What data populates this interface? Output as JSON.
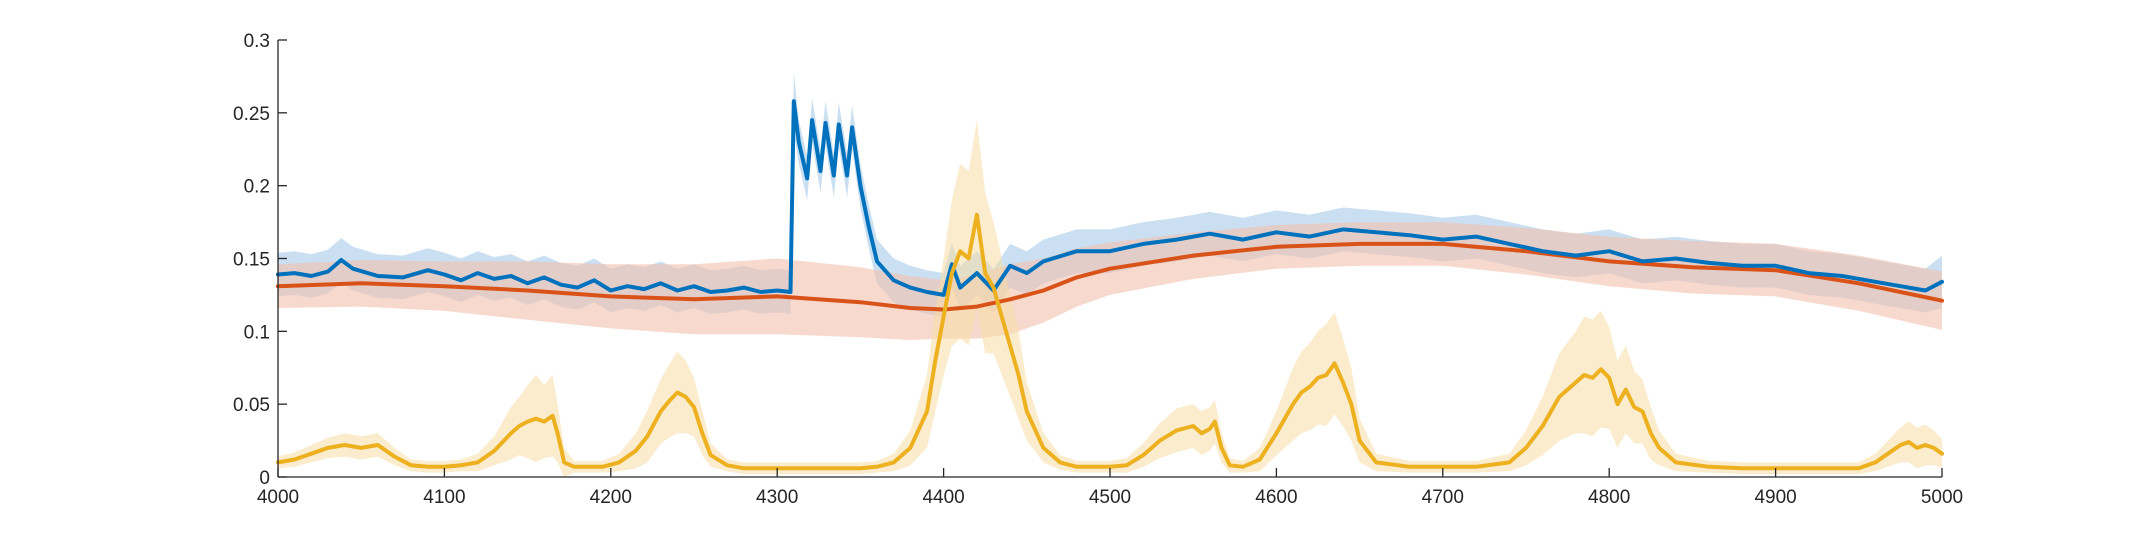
{
  "chart_data": {
    "type": "line",
    "title": "",
    "xlabel": "",
    "ylabel": "",
    "xlim": [
      4000,
      5000
    ],
    "ylim": [
      0,
      0.3
    ],
    "x_ticks": [
      4000,
      4100,
      4200,
      4300,
      4400,
      4500,
      4600,
      4700,
      4800,
      4900,
      5000
    ],
    "x_tick_labels": [
      "4000",
      "4100",
      "4200",
      "4300",
      "4400",
      "4500",
      "4600",
      "4700",
      "4800",
      "4900",
      "5000"
    ],
    "y_ticks": [
      0,
      0.05,
      0.1,
      0.15,
      0.2,
      0.25,
      0.3
    ],
    "y_tick_labels": [
      "0",
      "0.05",
      "0.1",
      "0.15",
      "0.2",
      "0.25",
      "0.3"
    ],
    "grid": false,
    "legend": "none",
    "series": [
      {
        "color": "#0072BD",
        "band_color": "#A6CCEA",
        "x": [
          4000,
          4010,
          4020,
          4030,
          4038,
          4045,
          4060,
          4075,
          4090,
          4100,
          4110,
          4120,
          4130,
          4140,
          4150,
          4160,
          4170,
          4180,
          4190,
          4200,
          4210,
          4220,
          4230,
          4240,
          4250,
          4260,
          4270,
          4280,
          4290,
          4300,
          4308,
          4310,
          4313,
          4318,
          4321,
          4326,
          4329,
          4334,
          4337,
          4342,
          4345,
          4350,
          4355,
          4360,
          4370,
          4380,
          4390,
          4400,
          4405,
          4410,
          4420,
          4430,
          4440,
          4450,
          4460,
          4480,
          4500,
          4520,
          4540,
          4560,
          4580,
          4600,
          4620,
          4640,
          4660,
          4680,
          4700,
          4720,
          4740,
          4760,
          4780,
          4800,
          4820,
          4840,
          4860,
          4880,
          4900,
          4920,
          4940,
          4960,
          4980,
          4990,
          5000
        ],
        "y": [
          0.139,
          0.14,
          0.138,
          0.141,
          0.149,
          0.143,
          0.138,
          0.137,
          0.142,
          0.139,
          0.135,
          0.14,
          0.136,
          0.138,
          0.133,
          0.137,
          0.132,
          0.13,
          0.135,
          0.128,
          0.131,
          0.129,
          0.133,
          0.128,
          0.131,
          0.127,
          0.128,
          0.13,
          0.127,
          0.128,
          0.127,
          0.258,
          0.23,
          0.205,
          0.245,
          0.21,
          0.243,
          0.207,
          0.242,
          0.207,
          0.24,
          0.2,
          0.172,
          0.148,
          0.135,
          0.13,
          0.127,
          0.125,
          0.146,
          0.13,
          0.14,
          0.128,
          0.145,
          0.14,
          0.148,
          0.155,
          0.155,
          0.16,
          0.163,
          0.167,
          0.163,
          0.168,
          0.165,
          0.17,
          0.168,
          0.166,
          0.163,
          0.165,
          0.16,
          0.155,
          0.152,
          0.155,
          0.148,
          0.15,
          0.147,
          0.145,
          0.145,
          0.14,
          0.138,
          0.134,
          0.13,
          0.128,
          0.134
        ],
        "band": [
          0.015,
          0.015,
          0.015,
          0.015,
          0.015,
          0.015,
          0.015,
          0.015,
          0.015,
          0.015,
          0.015,
          0.015,
          0.015,
          0.015,
          0.015,
          0.015,
          0.015,
          0.015,
          0.015,
          0.015,
          0.015,
          0.015,
          0.015,
          0.015,
          0.015,
          0.015,
          0.015,
          0.015,
          0.015,
          0.015,
          0.015,
          0.02,
          0.015,
          0.015,
          0.015,
          0.015,
          0.015,
          0.015,
          0.015,
          0.015,
          0.015,
          0.015,
          0.015,
          0.015,
          0.015,
          0.015,
          0.015,
          0.015,
          0.015,
          0.015,
          0.015,
          0.015,
          0.015,
          0.015,
          0.015,
          0.015,
          0.015,
          0.015,
          0.015,
          0.015,
          0.015,
          0.015,
          0.015,
          0.015,
          0.015,
          0.015,
          0.015,
          0.015,
          0.015,
          0.015,
          0.015,
          0.015,
          0.015,
          0.015,
          0.015,
          0.015,
          0.015,
          0.015,
          0.015,
          0.015,
          0.015,
          0.015,
          0.018
        ]
      },
      {
        "color": "#D95319",
        "band_color": "#F3C0AE",
        "x": [
          4000,
          4050,
          4100,
          4150,
          4200,
          4250,
          4300,
          4350,
          4380,
          4400,
          4420,
          4440,
          4460,
          4480,
          4500,
          4550,
          4600,
          4650,
          4700,
          4750,
          4800,
          4850,
          4900,
          4950,
          5000
        ],
        "y": [
          0.131,
          0.133,
          0.131,
          0.128,
          0.124,
          0.122,
          0.124,
          0.12,
          0.116,
          0.115,
          0.117,
          0.122,
          0.128,
          0.137,
          0.143,
          0.152,
          0.158,
          0.16,
          0.16,
          0.155,
          0.148,
          0.144,
          0.142,
          0.133,
          0.121
        ],
        "band": [
          0.015,
          0.016,
          0.017,
          0.02,
          0.022,
          0.024,
          0.026,
          0.024,
          0.022,
          0.02,
          0.022,
          0.024,
          0.022,
          0.02,
          0.018,
          0.016,
          0.015,
          0.015,
          0.015,
          0.016,
          0.017,
          0.018,
          0.018,
          0.019,
          0.02
        ]
      },
      {
        "color": "#EDB120",
        "band_color": "#F8DCA4",
        "x": [
          4000,
          4010,
          4020,
          4030,
          4040,
          4050,
          4060,
          4070,
          4080,
          4090,
          4100,
          4110,
          4120,
          4130,
          4140,
          4145,
          4150,
          4155,
          4160,
          4165,
          4168,
          4172,
          4178,
          4185,
          4195,
          4205,
          4215,
          4222,
          4230,
          4235,
          4240,
          4245,
          4250,
          4255,
          4260,
          4270,
          4280,
          4290,
          4300,
          4310,
          4320,
          4330,
          4340,
          4350,
          4360,
          4370,
          4380,
          4390,
          4395,
          4400,
          4405,
          4410,
          4415,
          4420,
          4425,
          4430,
          4435,
          4440,
          4445,
          4450,
          4460,
          4470,
          4480,
          4490,
          4500,
          4510,
          4520,
          4530,
          4540,
          4550,
          4555,
          4560,
          4563,
          4567,
          4572,
          4580,
          4590,
          4600,
          4610,
          4615,
          4620,
          4625,
          4630,
          4635,
          4640,
          4645,
          4650,
          4660,
          4680,
          4700,
          4720,
          4740,
          4750,
          4760,
          4770,
          4780,
          4785,
          4790,
          4795,
          4800,
          4805,
          4810,
          4815,
          4820,
          4825,
          4830,
          4840,
          4860,
          4880,
          4900,
          4920,
          4940,
          4950,
          4960,
          4970,
          4975,
          4980,
          4985,
          4990,
          4995,
          5000
        ],
        "y": [
          0.01,
          0.012,
          0.016,
          0.02,
          0.022,
          0.02,
          0.022,
          0.014,
          0.008,
          0.007,
          0.007,
          0.008,
          0.01,
          0.018,
          0.03,
          0.035,
          0.038,
          0.04,
          0.038,
          0.042,
          0.03,
          0.01,
          0.007,
          0.007,
          0.007,
          0.01,
          0.018,
          0.028,
          0.045,
          0.052,
          0.058,
          0.055,
          0.048,
          0.03,
          0.015,
          0.008,
          0.006,
          0.006,
          0.006,
          0.006,
          0.006,
          0.006,
          0.006,
          0.006,
          0.007,
          0.01,
          0.02,
          0.045,
          0.08,
          0.11,
          0.14,
          0.155,
          0.15,
          0.18,
          0.14,
          0.13,
          0.11,
          0.09,
          0.07,
          0.045,
          0.02,
          0.01,
          0.007,
          0.007,
          0.007,
          0.008,
          0.015,
          0.025,
          0.032,
          0.035,
          0.03,
          0.033,
          0.038,
          0.02,
          0.008,
          0.007,
          0.012,
          0.03,
          0.05,
          0.058,
          0.062,
          0.068,
          0.07,
          0.078,
          0.065,
          0.05,
          0.025,
          0.01,
          0.007,
          0.007,
          0.007,
          0.01,
          0.02,
          0.035,
          0.055,
          0.065,
          0.07,
          0.068,
          0.074,
          0.068,
          0.05,
          0.06,
          0.048,
          0.045,
          0.03,
          0.02,
          0.01,
          0.007,
          0.006,
          0.006,
          0.006,
          0.006,
          0.006,
          0.01,
          0.018,
          0.022,
          0.024,
          0.02,
          0.022,
          0.02,
          0.016
        ],
        "band": [
          0.004,
          0.005,
          0.006,
          0.007,
          0.008,
          0.008,
          0.008,
          0.006,
          0.004,
          0.004,
          0.004,
          0.004,
          0.006,
          0.01,
          0.018,
          0.02,
          0.025,
          0.03,
          0.025,
          0.028,
          0.02,
          0.01,
          0.004,
          0.004,
          0.004,
          0.006,
          0.012,
          0.018,
          0.022,
          0.025,
          0.028,
          0.025,
          0.02,
          0.015,
          0.008,
          0.004,
          0.004,
          0.004,
          0.004,
          0.004,
          0.004,
          0.004,
          0.004,
          0.004,
          0.004,
          0.006,
          0.012,
          0.025,
          0.035,
          0.04,
          0.05,
          0.06,
          0.06,
          0.065,
          0.055,
          0.045,
          0.04,
          0.035,
          0.03,
          0.02,
          0.01,
          0.005,
          0.004,
          0.004,
          0.004,
          0.005,
          0.008,
          0.012,
          0.015,
          0.015,
          0.015,
          0.015,
          0.015,
          0.01,
          0.005,
          0.004,
          0.008,
          0.015,
          0.025,
          0.028,
          0.03,
          0.032,
          0.035,
          0.035,
          0.03,
          0.025,
          0.015,
          0.006,
          0.004,
          0.004,
          0.004,
          0.006,
          0.012,
          0.02,
          0.03,
          0.035,
          0.04,
          0.04,
          0.04,
          0.035,
          0.03,
          0.03,
          0.025,
          0.022,
          0.018,
          0.012,
          0.006,
          0.004,
          0.004,
          0.004,
          0.004,
          0.004,
          0.004,
          0.006,
          0.01,
          0.012,
          0.014,
          0.014,
          0.014,
          0.012,
          0.01
        ]
      }
    ]
  }
}
